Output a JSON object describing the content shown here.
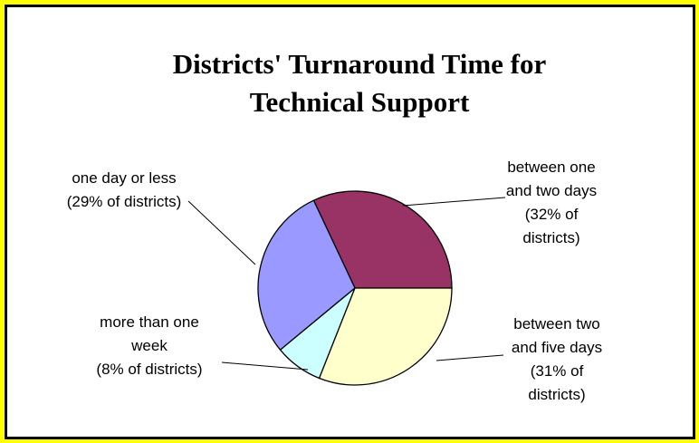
{
  "chart_data": {
    "type": "pie",
    "title": [
      "Districts' Turnaround Time for",
      "Technical Support"
    ],
    "categories": [
      "between one and two days",
      "one day or less",
      "more than one week",
      "between two and five days"
    ],
    "values": [
      32,
      29,
      8,
      31
    ],
    "value_labels": [
      "(32% of districts)",
      "(29% of districts)",
      "(8% of districts)",
      "(31% of districts)"
    ],
    "colors": [
      "#993366",
      "#9999ff",
      "#ccffff",
      "#ffffcc"
    ]
  }
}
